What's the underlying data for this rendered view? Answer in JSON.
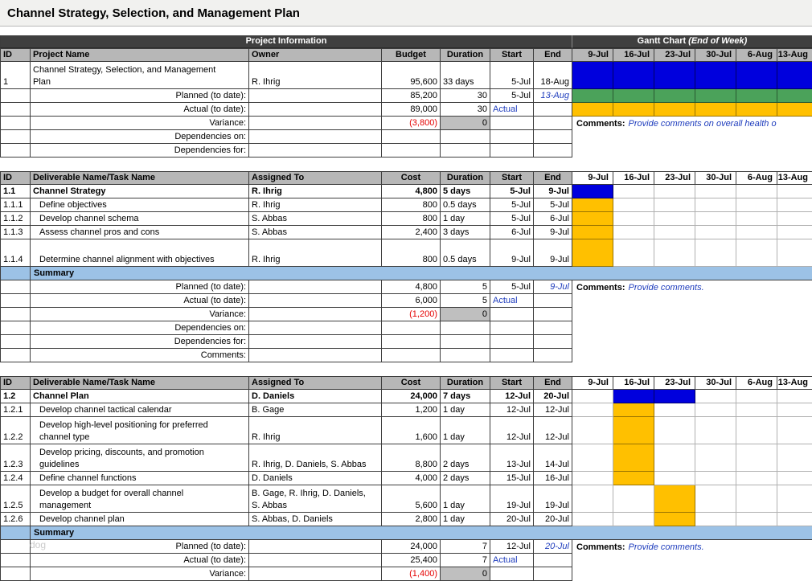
{
  "page_title": "Channel Strategy, Selection, and Management Plan",
  "watermark": "dog",
  "colors": {
    "band-bg": "#3f3f3f",
    "header-bg": "#b7b7b7",
    "summary-bg": "#9cc2e6",
    "bar-blue": "#0000dd",
    "bar-green": "#4ba25a",
    "bar-yellow": "#ffc000",
    "text-blue": "#1f3dbd",
    "text-red": "#e50000",
    "gray-cell": "#bfbfbf"
  },
  "band": {
    "left": "Project Information",
    "right": "Gantt Chart",
    "right_italic": "(End of Week)"
  },
  "gantt_dates": [
    "9-Jul",
    "16-Jul",
    "23-Jul",
    "30-Jul",
    "6-Aug",
    "13-Aug"
  ],
  "sections": [
    {
      "key": "project-information",
      "band": true,
      "dates_gray": true,
      "columns": [
        "ID",
        "Project Name",
        "Owner",
        "Budget",
        "Duration",
        "Start",
        "End"
      ],
      "rows": [
        {
          "t": "task",
          "tall": true,
          "id": "1",
          "name": "Channel Strategy, Selection, and Management Plan",
          "owner": "R. Ihrig",
          "cost": "95,600",
          "dur": "33 days",
          "start": "5-Jul",
          "end": "18-Aug",
          "bars": [
            "blue",
            "blue",
            "blue",
            "blue",
            "blue",
            "blue"
          ]
        },
        {
          "t": "stat",
          "label": "Planned (to date):",
          "cost": "85,200",
          "dur": "30",
          "start": "5-Jul",
          "end": "13-Aug",
          "end_blue": true,
          "bars": [
            "green",
            "green",
            "green",
            "green",
            "green",
            "green"
          ]
        },
        {
          "t": "stat",
          "label": "Actual (to date):",
          "cost": "89,000",
          "dur": "30",
          "start": "Actual",
          "start_blue": true,
          "bars": [
            "yellow",
            "yellow",
            "yellow",
            "yellow",
            "yellow",
            "yellow"
          ]
        },
        {
          "t": "stat",
          "label": "Variance:",
          "cost": "(3,800)",
          "cost_red": true,
          "dur": "0",
          "dur_gray": true,
          "comment_bold": "Comments:",
          "comment": "Provide comments on overall health o"
        },
        {
          "t": "stat",
          "label": "Dependencies on:"
        },
        {
          "t": "stat",
          "label": "Dependencies for:"
        }
      ]
    },
    {
      "key": "deliverable-1-1",
      "band": false,
      "dates_gray": false,
      "columns": [
        "ID",
        "Deliverable Name/Task Name",
        "Assigned To",
        "Cost",
        "Duration",
        "Start",
        "End"
      ],
      "rows": [
        {
          "t": "task",
          "bold": true,
          "id": "1.1",
          "name": "Channel Strategy",
          "owner": "R. Ihrig",
          "cost": "4,800",
          "dur": "5 days",
          "start": "5-Jul",
          "end": "9-Jul",
          "bars": [
            "blue",
            null,
            null,
            null,
            null,
            null
          ]
        },
        {
          "t": "task",
          "id": "1.1.1",
          "indent": true,
          "name": "Define objectives",
          "owner": "R. Ihrig",
          "cost": "800",
          "dur": "0.5 days",
          "start": "5-Jul",
          "end": "5-Jul",
          "bars": [
            "yellow",
            null,
            null,
            null,
            null,
            null
          ]
        },
        {
          "t": "task",
          "id": "1.1.2",
          "indent": true,
          "name": "Develop channel schema",
          "owner": "S. Abbas",
          "cost": "800",
          "dur": "1 day",
          "start": "5-Jul",
          "end": "6-Jul",
          "bars": [
            "yellow",
            null,
            null,
            null,
            null,
            null
          ]
        },
        {
          "t": "task",
          "id": "1.1.3",
          "indent": true,
          "name": "Assess channel pros and cons",
          "owner": "S. Abbas",
          "cost": "2,400",
          "dur": "3 days",
          "start": "6-Jul",
          "end": "9-Jul",
          "bars": [
            "yellow",
            null,
            null,
            null,
            null,
            null
          ]
        },
        {
          "t": "task",
          "tall": true,
          "id": "1.1.4",
          "indent": true,
          "name": "Determine channel alignment with objectives",
          "owner": "R. Ihrig",
          "cost": "800",
          "dur": "0.5 days",
          "start": "9-Jul",
          "end": "9-Jul",
          "bars": [
            "yellow",
            null,
            null,
            null,
            null,
            null
          ]
        },
        {
          "t": "summary",
          "label": "Summary"
        },
        {
          "t": "stat",
          "label": "Planned (to date):",
          "cost": "4,800",
          "dur": "5",
          "start": "5-Jul",
          "end": "9-Jul",
          "end_blue": true,
          "comment_bold": "Comments:",
          "comment": "Provide comments."
        },
        {
          "t": "stat",
          "label": "Actual (to date):",
          "cost": "6,000",
          "dur": "5",
          "start": "Actual",
          "start_blue": true
        },
        {
          "t": "stat",
          "label": "Variance:",
          "cost": "(1,200)",
          "cost_red": true,
          "dur": "0",
          "dur_gray": true
        },
        {
          "t": "stat",
          "label": "Dependencies on:"
        },
        {
          "t": "stat",
          "label": "Dependencies for:"
        },
        {
          "t": "stat",
          "label": "Comments:"
        }
      ]
    },
    {
      "key": "deliverable-1-2",
      "band": false,
      "dates_gray": false,
      "columns": [
        "ID",
        "Deliverable Name/Task Name",
        "Assigned To",
        "Cost",
        "Duration",
        "Start",
        "End"
      ],
      "rows": [
        {
          "t": "task",
          "bold": true,
          "id": "1.2",
          "name": "Channel Plan",
          "owner": "D. Daniels",
          "cost": "24,000",
          "dur": "7 days",
          "start": "12-Jul",
          "end": "20-Jul",
          "bars": [
            null,
            "blue",
            "blue",
            null,
            null,
            null
          ]
        },
        {
          "t": "task",
          "id": "1.2.1",
          "indent": true,
          "name": "Develop channel tactical calendar",
          "owner": "B. Gage",
          "cost": "1,200",
          "dur": "1 day",
          "start": "12-Jul",
          "end": "12-Jul",
          "bars": [
            null,
            "yellow",
            null,
            null,
            null,
            null
          ]
        },
        {
          "t": "task",
          "tall": true,
          "id": "1.2.2",
          "indent": true,
          "name": "Develop high-level positioning for preferred channel type",
          "owner": "R. Ihrig",
          "cost": "1,600",
          "dur": "1 day",
          "start": "12-Jul",
          "end": "12-Jul",
          "bars": [
            null,
            "yellow",
            null,
            null,
            null,
            null
          ]
        },
        {
          "t": "task",
          "tall": true,
          "id": "1.2.3",
          "indent": true,
          "name": "Develop pricing, discounts, and promotion guidelines",
          "owner": "R. Ihrig, D. Daniels, S. Abbas",
          "cost": "8,800",
          "dur": "2 days",
          "start": "13-Jul",
          "end": "14-Jul",
          "bars": [
            null,
            "yellow",
            null,
            null,
            null,
            null
          ]
        },
        {
          "t": "task",
          "id": "1.2.4",
          "indent": true,
          "name": "Define channel functions",
          "owner": "D. Daniels",
          "cost": "4,000",
          "dur": "2 days",
          "start": "15-Jul",
          "end": "16-Jul",
          "bars": [
            null,
            "yellow",
            null,
            null,
            null,
            null
          ]
        },
        {
          "t": "task",
          "tall": true,
          "id": "1.2.5",
          "indent": true,
          "name": "Develop a budget for overall channel management",
          "owner": "B. Gage, R. Ihrig, D. Daniels, S. Abbas",
          "cost": "5,600",
          "dur": "1 day",
          "start": "19-Jul",
          "end": "19-Jul",
          "bars": [
            null,
            null,
            "yellow",
            null,
            null,
            null
          ]
        },
        {
          "t": "task",
          "id": "1.2.6",
          "indent": true,
          "name": "Develop channel plan",
          "owner": "S. Abbas, D. Daniels",
          "cost": "2,800",
          "dur": "1 day",
          "start": "20-Jul",
          "end": "20-Jul",
          "bars": [
            null,
            null,
            "yellow",
            null,
            null,
            null
          ]
        },
        {
          "t": "summary",
          "label": "Summary"
        },
        {
          "t": "stat",
          "label": "Planned (to date):",
          "cost": "24,000",
          "dur": "7",
          "start": "12-Jul",
          "end": "20-Jul",
          "end_blue": true,
          "comment_bold": "Comments:",
          "comment": "Provide comments."
        },
        {
          "t": "stat",
          "label": "Actual (to date):",
          "cost": "25,400",
          "dur": "7",
          "start": "Actual",
          "start_blue": true
        },
        {
          "t": "stat",
          "label": "Variance:",
          "cost": "(1,400)",
          "cost_red": true,
          "dur": "0",
          "dur_gray": true
        }
      ]
    }
  ]
}
